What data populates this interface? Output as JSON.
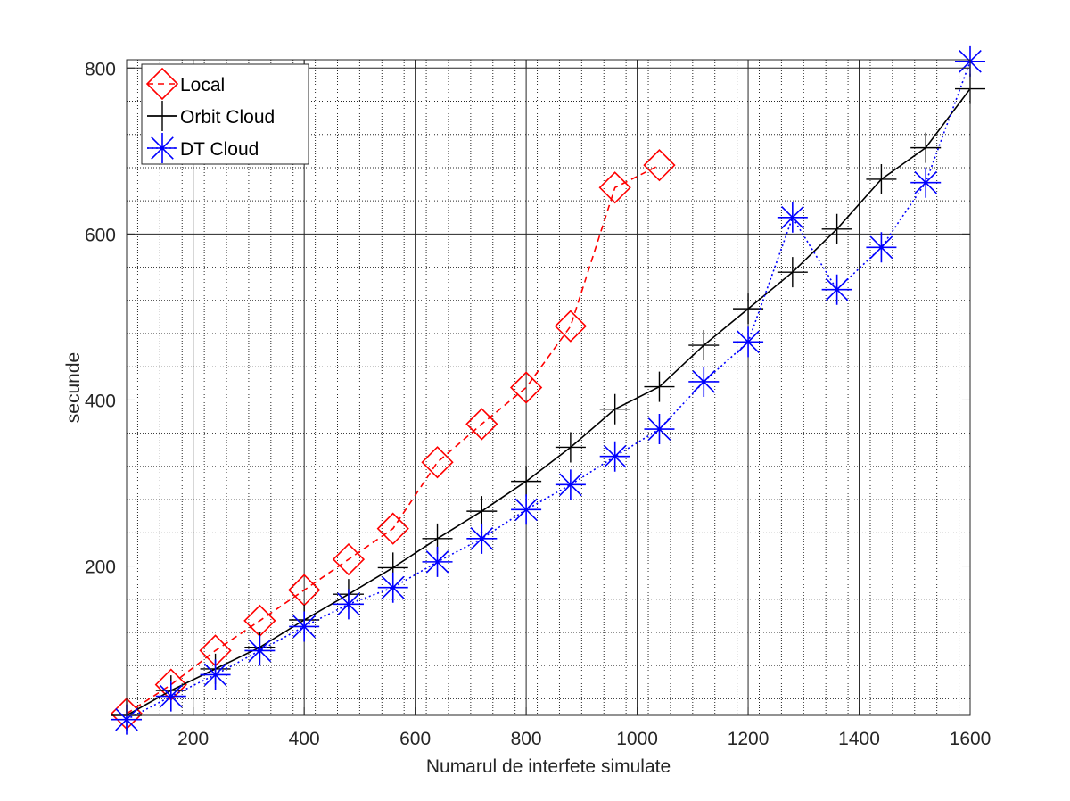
{
  "chart_data": {
    "type": "line",
    "title": "",
    "xlabel": "Numarul de interfete simulate",
    "ylabel": "secunde",
    "xlim": [
      80,
      1600
    ],
    "ylim": [
      20,
      810
    ],
    "x_ticks": [
      200,
      400,
      600,
      800,
      1000,
      1200,
      1400,
      1600
    ],
    "y_ticks": [
      200,
      400,
      600,
      800
    ],
    "x_tick_labels": [
      "200",
      "400",
      "600",
      "800",
      "1000",
      "1200",
      "1400",
      "1600"
    ],
    "y_tick_labels": [
      "200",
      "400",
      "600",
      "800"
    ],
    "grid": true,
    "minor_grid": true,
    "legend_position": "top-left",
    "series": [
      {
        "name": "Local",
        "color": "#ff0000",
        "line_style": "dashed",
        "marker": "diamond",
        "x": [
          80,
          160,
          240,
          320,
          400,
          480,
          560,
          640,
          720,
          800,
          880,
          960,
          1040
        ],
        "values": [
          22,
          57,
          98,
          134,
          171,
          208,
          245,
          325,
          371,
          415,
          489,
          656,
          683
        ]
      },
      {
        "name": "Orbit Cloud",
        "color": "#000000",
        "line_style": "solid",
        "marker": "plus",
        "x": [
          80,
          160,
          240,
          320,
          400,
          480,
          560,
          640,
          720,
          800,
          880,
          960,
          1040,
          1120,
          1200,
          1280,
          1360,
          1440,
          1520,
          1600
        ],
        "values": [
          20,
          50,
          76,
          102,
          135,
          166,
          198,
          233,
          266,
          302,
          343,
          389,
          416,
          466,
          510,
          554,
          606,
          666,
          704,
          775
        ]
      },
      {
        "name": "DT Cloud",
        "color": "#0000ff",
        "line_style": "dotted",
        "marker": "asterisk",
        "x": [
          80,
          160,
          240,
          320,
          400,
          480,
          560,
          640,
          720,
          800,
          880,
          960,
          1040,
          1120,
          1200,
          1280,
          1360,
          1440,
          1520,
          1600
        ],
        "values": [
          15,
          43,
          69,
          98,
          127,
          154,
          174,
          205,
          233,
          268,
          298,
          332,
          365,
          422,
          470,
          620,
          533,
          584,
          662,
          808
        ]
      }
    ]
  }
}
